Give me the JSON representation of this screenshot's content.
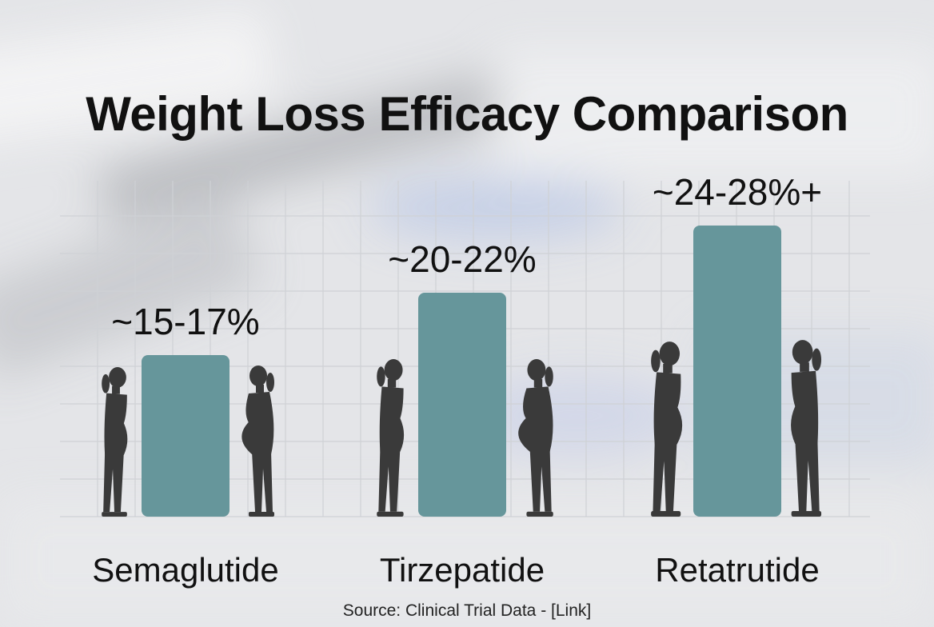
{
  "title": "Weight Loss Efficacy Comparison",
  "source": "Source: Clinical Trial Data - [Link]",
  "colors": {
    "bar": "#66969b",
    "silhouette": "#3a3a3a",
    "grid": "#cfd1d5",
    "text": "#111111"
  },
  "chart_data": {
    "type": "bar",
    "categories": [
      "Semaglutide",
      "Tirzepatide",
      "Retatrutide"
    ],
    "values": [
      16,
      21,
      26
    ],
    "ranges": [
      [
        15,
        17
      ],
      [
        20,
        22
      ],
      [
        24,
        28
      ]
    ],
    "data_labels": [
      "~15-17%",
      "~20-22%",
      "~24-28%+"
    ],
    "ylim": [
      0,
      30
    ],
    "grid": true,
    "decorations": "before/after body silhouettes flanking each bar"
  }
}
